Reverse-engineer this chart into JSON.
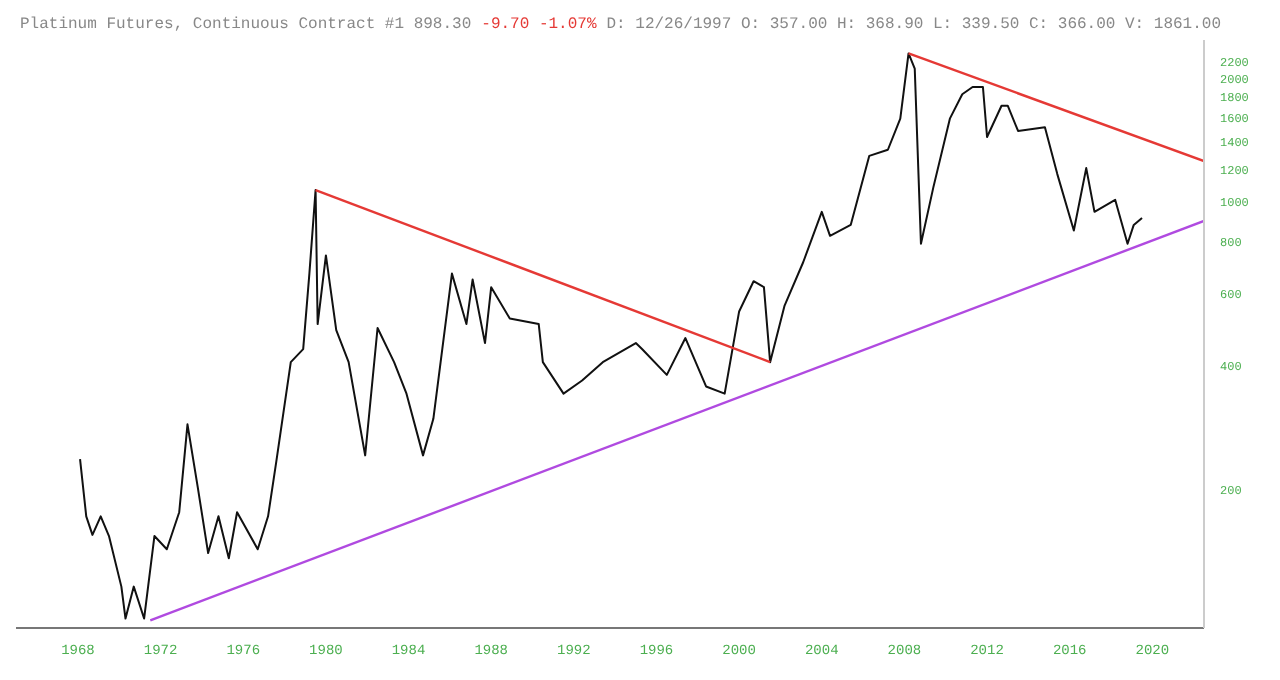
{
  "chart_data": {
    "type": "line",
    "title": "Platinum Futures, Continuous Contract #1 898.30",
    "annotations": [
      "-9.70 -1.07%",
      "D: 12/26/1997 O: 357.00 H: 368.90 L: 339.50 C: 366.00 V: 1861.00"
    ],
    "series": [
      {
        "color": "#111111",
        "x": [
          1968.1,
          1968.4,
          1968.7,
          1969.1,
          1969.5,
          1970.1,
          1970.3,
          1970.7,
          1971.2,
          1971.7,
          1972.3,
          1972.9,
          1973.3,
          1973.8,
          1974.3,
          1974.8,
          1975.3,
          1975.7,
          1976.7,
          1977.2,
          1977.6,
          1978.3,
          1978.9,
          1979.2,
          1979.5,
          1979.6,
          1980,
          1980.5,
          1981.1,
          1981.9,
          1982.5,
          1983.3,
          1983.9,
          1984.7,
          1985.2,
          1986.1,
          1986.8,
          1987.1,
          1987.7,
          1988,
          1988.9,
          1990.3,
          1990.5,
          1991.5,
          1992.4,
          1993.4,
          1995,
          1995.3,
          1996.5,
          1997.4,
          1998.4,
          1999.3,
          2000,
          2000.7,
          2001.2,
          2001.5,
          2002.2,
          2003.1,
          2004,
          2004.4,
          2005.4,
          2006.3,
          2007.2,
          2007.8,
          2008.2,
          2008.5,
          2008.8,
          2009.4,
          2010.2,
          2010.8,
          2011.3,
          2011.8,
          2012,
          2012.7,
          2013,
          2013.5,
          2014.8,
          2015.4,
          2016.2,
          2016.8,
          2017.2,
          2018.2,
          2018.8,
          2019.1,
          2019.5
        ],
        "values": [
          237,
          172,
          155,
          172,
          154,
          116,
          97,
          116,
          97,
          154,
          143,
          176,
          288,
          202,
          140,
          172,
          136,
          176,
          143,
          172,
          234,
          408,
          439,
          670,
          1070,
          505,
          742,
          488,
          408,
          242,
          494,
          408,
          342,
          242,
          297,
          670,
          505,
          648,
          454,
          621,
          521,
          505,
          408,
          342,
          368,
          408,
          454,
          439,
          380,
          467,
          356,
          342,
          542,
          642,
          621,
          408,
          560,
          714,
          947,
          828,
          880,
          1296,
          1341,
          1596,
          2300,
          2112,
          792,
          1086,
          1596,
          1830,
          1906,
          1906,
          1440,
          1716,
          1716,
          1490,
          1521,
          1170,
          853,
          1210,
          947,
          1013,
          792,
          880,
          915
        ]
      },
      {
        "color": "#e53935",
        "x": [
          1979.5,
          2001.5
        ],
        "values": [
          1070,
          408
        ]
      },
      {
        "color": "#e53935",
        "x": [
          2008.2,
          2022.5
        ],
        "values": [
          2300,
          1258
        ]
      },
      {
        "color": "#b04ae0",
        "x": [
          1971.5,
          2022.5
        ],
        "values": [
          96,
          900
        ]
      }
    ],
    "xlim": [
      1965,
      2022.5
    ],
    "xticks": [
      1968,
      1972,
      1976,
      1980,
      1984,
      1988,
      1992,
      1996,
      2000,
      2004,
      2008,
      2012,
      2016,
      2020
    ],
    "ylim": [
      92,
      2480
    ],
    "yticks": [
      200,
      400,
      600,
      800,
      1000,
      1200,
      1400,
      1600,
      1800,
      2000,
      2200
    ],
    "log": "y",
    "grid": false,
    "legend": false,
    "marker": "none",
    "line_style": "solid"
  }
}
